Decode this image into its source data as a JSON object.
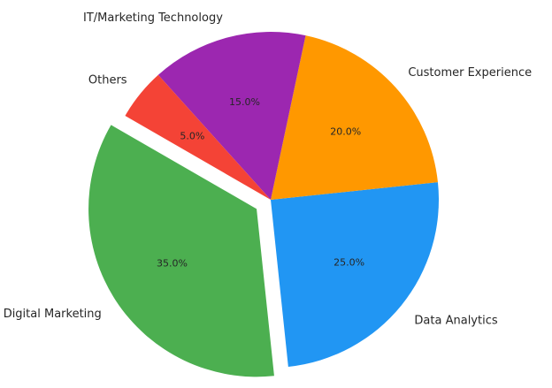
{
  "chart_data": {
    "type": "pie",
    "title": "",
    "start_angle_deg": 150,
    "direction": "counterclockwise",
    "slices": [
      {
        "label": "Digital Marketing",
        "value": 35.0,
        "pct_text": "35.0%",
        "color": "#4caf50",
        "exploded": true
      },
      {
        "label": "Data Analytics",
        "value": 25.0,
        "pct_text": "25.0%",
        "color": "#2196f3",
        "exploded": false
      },
      {
        "label": "Customer Experience",
        "value": 20.0,
        "pct_text": "20.0%",
        "color": "#ff9800",
        "exploded": false
      },
      {
        "label": "IT/Marketing Technology",
        "value": 15.0,
        "pct_text": "15.0%",
        "color": "#9c27b0",
        "exploded": false
      },
      {
        "label": "Others",
        "value": 5.0,
        "pct_text": "5.0%",
        "color": "#f44336",
        "exploded": false
      }
    ]
  }
}
